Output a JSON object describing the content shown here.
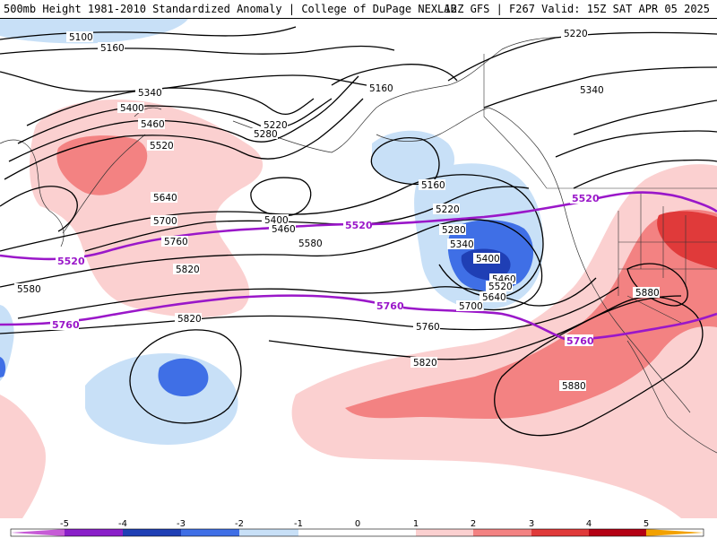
{
  "header": {
    "title_left": "500mb Height 1981-2010 Standardized Anomaly | College of DuPage NEXLAB",
    "title_right": "12Z GFS | F267 Valid: 15Z SAT APR 05 2025"
  },
  "colors": {
    "neg5": "#c65bd6",
    "neg4": "#8a1fc9",
    "neg3": "#1f3fb5",
    "neg2": "#3f6fe6",
    "neg1": "#c8e0f7",
    "zero": "#ffffff",
    "pos1": "#fbd0d0",
    "pos2": "#f38282",
    "pos3": "#e03a3a",
    "pos4": "#b40014",
    "pos5": "#f2a100",
    "contour": "#000000",
    "reference": "#9a17c9"
  },
  "colorbar": {
    "ticks": [
      "-5",
      "-4",
      "-3",
      "-2",
      "-1",
      "0",
      "1",
      "2",
      "3",
      "4",
      "5"
    ]
  },
  "contour_labels": [
    {
      "key": "5100",
      "text": "5100"
    },
    {
      "key": "5160a",
      "text": "5160"
    },
    {
      "key": "5340a",
      "text": "5340"
    },
    {
      "key": "5400a",
      "text": "5400"
    },
    {
      "key": "5460a",
      "text": "5460"
    },
    {
      "key": "5520a",
      "text": "5520"
    },
    {
      "key": "5220a",
      "text": "5220"
    },
    {
      "key": "5280a",
      "text": "5280"
    },
    {
      "key": "5160b",
      "text": "5160"
    },
    {
      "key": "5220b",
      "text": "5220"
    },
    {
      "key": "5340b",
      "text": "5340"
    },
    {
      "key": "5640a",
      "text": "5640"
    },
    {
      "key": "5700a",
      "text": "5700"
    },
    {
      "key": "5760a",
      "text": "5760"
    },
    {
      "key": "5820a",
      "text": "5820"
    },
    {
      "key": "5580a",
      "text": "5580"
    },
    {
      "key": "5400b",
      "text": "5400"
    },
    {
      "key": "5460b",
      "text": "5460"
    },
    {
      "key": "5580b",
      "text": "5580"
    },
    {
      "key": "5820b",
      "text": "5820"
    },
    {
      "key": "5160c",
      "text": "5160"
    },
    {
      "key": "5220c",
      "text": "5220"
    },
    {
      "key": "5280b",
      "text": "5280"
    },
    {
      "key": "5340c",
      "text": "5340"
    },
    {
      "key": "5400c",
      "text": "5400"
    },
    {
      "key": "5460c",
      "text": "5460"
    },
    {
      "key": "5520b",
      "text": "5520"
    },
    {
      "key": "5640b",
      "text": "5640"
    },
    {
      "key": "5700b",
      "text": "5700"
    },
    {
      "key": "5760b",
      "text": "5760"
    },
    {
      "key": "5820c",
      "text": "5820"
    },
    {
      "key": "5880a",
      "text": "5880"
    },
    {
      "key": "5880b",
      "text": "5880"
    }
  ],
  "reference_labels": [
    {
      "key": "r5520a",
      "text": "5520"
    },
    {
      "key": "r5520b",
      "text": "5520"
    },
    {
      "key": "r5520c",
      "text": "5520"
    },
    {
      "key": "r5760a",
      "text": "5760"
    },
    {
      "key": "r5760b",
      "text": "5760"
    },
    {
      "key": "r5760c",
      "text": "5760"
    }
  ]
}
